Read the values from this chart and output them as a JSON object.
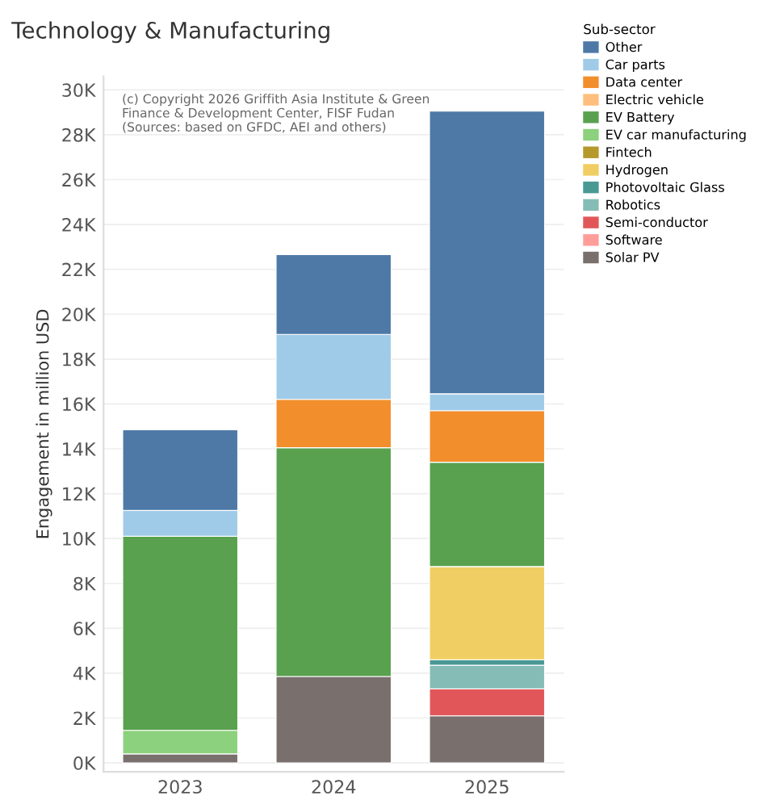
{
  "chart_data": {
    "type": "bar",
    "stacked": true,
    "title": "Technology & Manufacturing",
    "ylabel": "Engagement in million USD",
    "legend_title": "Sub-sector",
    "legend": "top right",
    "grid": "y",
    "categories": [
      "2023",
      "2024",
      "2025"
    ],
    "series": [
      {
        "name": "Solar PV",
        "color": "#79706e",
        "values": [
          400,
          3850,
          2100
        ]
      },
      {
        "name": "Software",
        "color": "#ff9d9a",
        "values": [
          null,
          null,
          null
        ]
      },
      {
        "name": "Semi-conductor",
        "color": "#e15759",
        "values": [
          null,
          null,
          1200
        ]
      },
      {
        "name": "Robotics",
        "color": "#86bcb6",
        "values": [
          null,
          null,
          1050
        ]
      },
      {
        "name": "Photovoltaic Glass",
        "color": "#499894",
        "values": [
          null,
          null,
          250
        ]
      },
      {
        "name": "Hydrogen",
        "color": "#f1ce63",
        "values": [
          null,
          null,
          4150
        ]
      },
      {
        "name": "Fintech",
        "color": "#b6992d",
        "values": [
          null,
          null,
          null
        ]
      },
      {
        "name": "EV car manufacturing",
        "color": "#8cd17d",
        "values": [
          1050,
          null,
          null
        ]
      },
      {
        "name": "EV Battery",
        "color": "#59a14f",
        "values": [
          8650,
          10200,
          4650
        ]
      },
      {
        "name": "Electric vehicle",
        "color": "#ffbe7d",
        "values": [
          null,
          null,
          null
        ]
      },
      {
        "name": "Data center",
        "color": "#f28e2b",
        "values": [
          null,
          2150,
          2300
        ]
      },
      {
        "name": "Car parts",
        "color": "#a0cbe8",
        "values": [
          1150,
          2900,
          750
        ]
      },
      {
        "name": "Other",
        "color": "#4e79a7",
        "values": [
          3600,
          3550,
          12600
        ]
      }
    ],
    "ylim": [
      -400,
      30600
    ],
    "yticks": [
      {
        "value": 0,
        "label": "0K"
      },
      {
        "value": 2000,
        "label": "2K"
      },
      {
        "value": 4000,
        "label": "4K"
      },
      {
        "value": 6000,
        "label": "6K"
      },
      {
        "value": 8000,
        "label": "8K"
      },
      {
        "value": 10000,
        "label": "10K"
      },
      {
        "value": 12000,
        "label": "12K"
      },
      {
        "value": 14000,
        "label": "14K"
      },
      {
        "value": 16000,
        "label": "16K"
      },
      {
        "value": 18000,
        "label": "18K"
      },
      {
        "value": 20000,
        "label": "20K"
      },
      {
        "value": 22000,
        "label": "22K"
      },
      {
        "value": 24000,
        "label": "24K"
      },
      {
        "value": 26000,
        "label": "26K"
      },
      {
        "value": 28000,
        "label": "28K"
      },
      {
        "value": 30000,
        "label": "30K"
      }
    ],
    "annotations": [
      "(c) Copyright 2026 Griffith Asia Institute & Green Finance & Development Center, FISF Fudan (Sources: based on GFDC, AEI and others)"
    ]
  }
}
